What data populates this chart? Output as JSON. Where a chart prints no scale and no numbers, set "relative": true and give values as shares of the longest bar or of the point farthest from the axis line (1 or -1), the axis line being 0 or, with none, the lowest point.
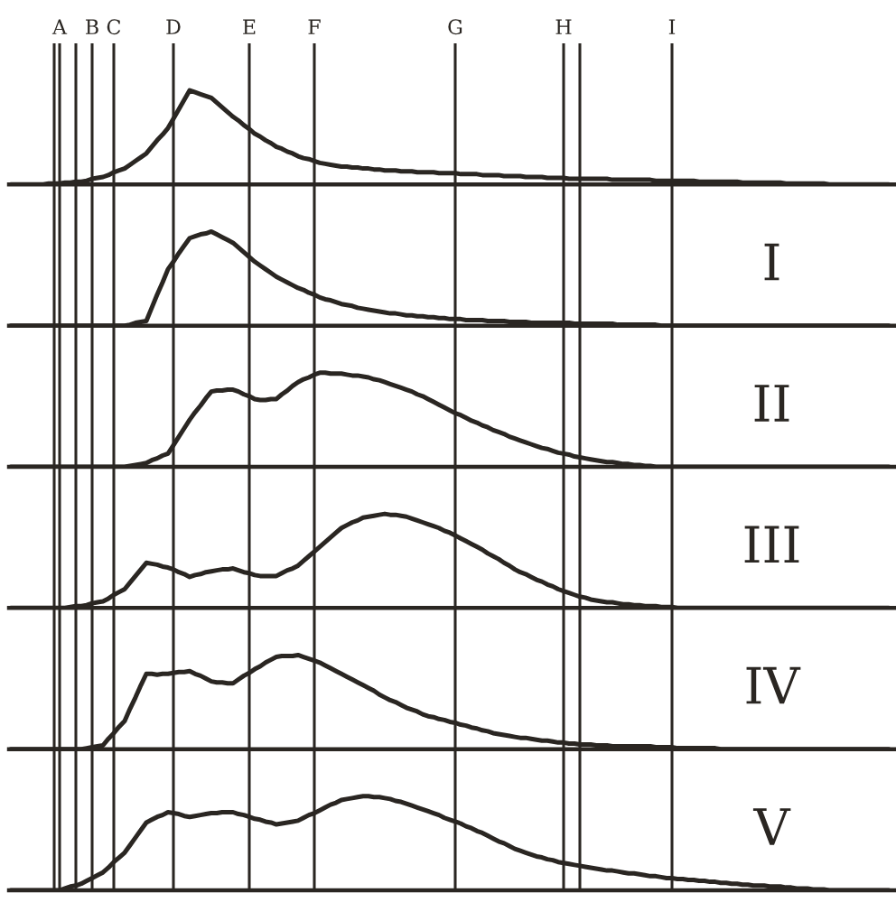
{
  "chart_data": [
    {
      "type": "line",
      "relative": true,
      "tick_labels": "x",
      "marker": "none",
      "line_style": "solid",
      "categories": [
        null,
        null,
        null,
        null,
        null,
        null,
        null,
        null,
        null,
        "A",
        null,
        null,
        null,
        null,
        null,
        "B",
        null,
        null,
        null,
        "C",
        null,
        null,
        null,
        null,
        null,
        null,
        null,
        null,
        null,
        null,
        "D",
        null,
        null,
        null,
        null,
        null,
        null,
        null,
        null,
        null,
        null,
        null,
        null,
        null,
        "E",
        null,
        null,
        null,
        null,
        null,
        null,
        null,
        null,
        null,
        null,
        null,
        "F",
        null,
        null,
        null,
        null,
        null,
        null,
        null,
        null,
        null,
        null,
        null,
        null,
        null,
        null,
        null,
        null,
        null,
        null,
        null,
        null,
        null,
        null,
        null,
        null,
        null,
        "G",
        null,
        null,
        null,
        null,
        null,
        null,
        null,
        null,
        null,
        null,
        null,
        null,
        null,
        null,
        null,
        null,
        null,
        null,
        null,
        "H",
        null,
        null,
        null,
        null,
        null,
        null,
        null,
        null,
        null,
        null,
        null,
        null,
        null,
        null,
        null,
        null,
        null,
        null,
        null,
        "I",
        null,
        null,
        null,
        null,
        null,
        null,
        null,
        null,
        null,
        null,
        null,
        null,
        null,
        null,
        null,
        null,
        null,
        null,
        null,
        null,
        null,
        null,
        null,
        null,
        null,
        null,
        null,
        null,
        null,
        null,
        null,
        null,
        null,
        null,
        null,
        null,
        null,
        null,
        null,
        null
      ],
      "series": [
        {
          "color": "#2a2622",
          "values": [
            0,
            0,
            0,
            0,
            0,
            0,
            0,
            0.01,
            0.01,
            0.01,
            0.02,
            0.02,
            0.03,
            0.03,
            0.04,
            0.06,
            0.07,
            0.08,
            0.1,
            0.13,
            0.15,
            0.17,
            0.21,
            0.25,
            0.29,
            0.33,
            0.4,
            0.47,
            0.53,
            0.6,
            0.7,
            0.8,
            0.9,
            1,
            0.98,
            0.96,
            0.94,
            0.92,
            0.87,
            0.82,
            0.77,
            0.72,
            0.68,
            0.63,
            0.59,
            0.54,
            0.51,
            0.47,
            0.44,
            0.4,
            0.38,
            0.35,
            0.33,
            0.3,
            0.28,
            0.27,
            0.25,
            0.23,
            0.22,
            0.21,
            0.2,
            0.19,
            0.19,
            0.18,
            0.18,
            0.17,
            0.17,
            0.16,
            0.16,
            0.15,
            0.15,
            0.15,
            0.14,
            0.14,
            0.14,
            0.13,
            0.13,
            0.13,
            0.13,
            0.12,
            0.12,
            0.12,
            0.12,
            0.11,
            0.11,
            0.11,
            0.11,
            0.1,
            0.1,
            0.1,
            0.1,
            0.09,
            0.09,
            0.09,
            0.09,
            0.08,
            0.08,
            0.08,
            0.08,
            0.07,
            0.07,
            0.07,
            0.07,
            0.06,
            0.06,
            0.06,
            0.06,
            0.06,
            0.06,
            0.06,
            0.06,
            0.05,
            0.05,
            0.05,
            0.05,
            0.05,
            0.05,
            0.05,
            0.05,
            0.04,
            0.04,
            0.04,
            0.04,
            0.04,
            0.04,
            0.04,
            0.04,
            0.03,
            0.03,
            0.03,
            0.03,
            0.03,
            0.03,
            0.03,
            0.03,
            0.02,
            0.02,
            0.02,
            0.02,
            0.02,
            0.02,
            0.02,
            0.02,
            0.01,
            0.01,
            0.01,
            0.01,
            0.01,
            0.01,
            0.01,
            0.01,
            0,
            0,
            0,
            0,
            0,
            0,
            0,
            0,
            0,
            0,
            0,
            0
          ]
        }
      ],
      "grid": "x"
    },
    {
      "type": "line",
      "relative": true,
      "tick_labels": false,
      "marker": "none",
      "line_style": "solid",
      "title": "I",
      "categories": [
        null,
        null,
        null,
        null,
        null,
        null,
        null,
        null,
        null,
        "A",
        null,
        null,
        null,
        null,
        null,
        "B",
        null,
        null,
        null,
        "C",
        null,
        null,
        null,
        null,
        null,
        null,
        null,
        null,
        null,
        null,
        "D",
        null,
        null,
        null,
        null,
        null,
        null,
        null,
        null,
        null,
        null,
        null,
        null,
        null,
        "E",
        null,
        null,
        null,
        null,
        null,
        null,
        null,
        null,
        null,
        null,
        null,
        "F",
        null,
        null,
        null,
        null,
        null,
        null,
        null,
        null,
        null,
        null,
        null,
        null,
        null,
        null,
        null,
        null,
        null,
        null,
        null,
        null,
        null,
        null,
        null,
        null,
        null,
        "G",
        null,
        null,
        null,
        null,
        null,
        null,
        null,
        null,
        null,
        null,
        null,
        null,
        null,
        null,
        null,
        null,
        null,
        null,
        null,
        "H",
        null,
        null,
        null,
        null,
        null,
        null,
        null,
        null,
        null,
        null,
        null,
        null,
        null,
        null,
        null,
        null,
        null,
        null,
        null,
        "I",
        null,
        null,
        null,
        null,
        null,
        null,
        null,
        null,
        null,
        null,
        null,
        null,
        null,
        null,
        null,
        null,
        null,
        null,
        null,
        null,
        null,
        null,
        null,
        null,
        null,
        null,
        null,
        null,
        null,
        null,
        null,
        null,
        null,
        null,
        null,
        null,
        null,
        null,
        null,
        null
      ],
      "series": [
        {
          "color": "#2a2622",
          "values": [
            0,
            0,
            0,
            0,
            0,
            0,
            0,
            0,
            0,
            0,
            0,
            0,
            0,
            0,
            0,
            0,
            0,
            0,
            0,
            0,
            0,
            0,
            0.01,
            0.03,
            0.04,
            0.05,
            0.19,
            0.33,
            0.46,
            0.6,
            0.68,
            0.77,
            0.85,
            0.93,
            0.95,
            0.97,
            0.98,
            1,
            0.97,
            0.94,
            0.91,
            0.88,
            0.83,
            0.78,
            0.73,
            0.68,
            0.64,
            0.6,
            0.56,
            0.52,
            0.49,
            0.46,
            0.43,
            0.4,
            0.38,
            0.35,
            0.33,
            0.3,
            0.28,
            0.27,
            0.25,
            0.23,
            0.22,
            0.21,
            0.19,
            0.18,
            0.17,
            0.16,
            0.15,
            0.14,
            0.13,
            0.13,
            0.12,
            0.11,
            0.11,
            0.1,
            0.1,
            0.09,
            0.09,
            0.08,
            0.08,
            0.07,
            0.07,
            0.07,
            0.06,
            0.06,
            0.06,
            0.06,
            0.05,
            0.05,
            0.05,
            0.05,
            0.04,
            0.04,
            0.04,
            0.04,
            0.03,
            0.03,
            0.03,
            0.03,
            0.03,
            0.03,
            0.03,
            0.03,
            0.02,
            0.02,
            0.02,
            0.02,
            0.02,
            0.02,
            0.02,
            0.02,
            0.01,
            0.01,
            0.01,
            0.01,
            0.01,
            0.01,
            0.01,
            0.01,
            0,
            0,
            0,
            0,
            0,
            0,
            0,
            0,
            0,
            0,
            0,
            0,
            0,
            0,
            0,
            0,
            0,
            0,
            0,
            0,
            0,
            0,
            0,
            0,
            0,
            0,
            0,
            0,
            0,
            0,
            0,
            0,
            0,
            0,
            0,
            0,
            0,
            0,
            0,
            0,
            0,
            0,
            0
          ]
        }
      ],
      "grid": "x"
    },
    {
      "type": "line",
      "relative": true,
      "tick_labels": false,
      "marker": "none",
      "line_style": "solid",
      "title": "II",
      "categories": [
        null,
        null,
        null,
        null,
        null,
        null,
        null,
        null,
        null,
        "A",
        null,
        null,
        null,
        null,
        null,
        "B",
        null,
        null,
        null,
        "C",
        null,
        null,
        null,
        null,
        null,
        null,
        null,
        null,
        null,
        null,
        "D",
        null,
        null,
        null,
        null,
        null,
        null,
        null,
        null,
        null,
        null,
        null,
        null,
        null,
        "E",
        null,
        null,
        null,
        null,
        null,
        null,
        null,
        null,
        null,
        null,
        null,
        "F",
        null,
        null,
        null,
        null,
        null,
        null,
        null,
        null,
        null,
        null,
        null,
        null,
        null,
        null,
        null,
        null,
        null,
        null,
        null,
        null,
        null,
        null,
        null,
        null,
        null,
        "G",
        null,
        null,
        null,
        null,
        null,
        null,
        null,
        null,
        null,
        null,
        null,
        null,
        null,
        null,
        null,
        null,
        null,
        null,
        null,
        "H",
        null,
        null,
        null,
        null,
        null,
        null,
        null,
        null,
        null,
        null,
        null,
        null,
        null,
        null,
        null,
        null,
        null,
        null,
        null,
        "I",
        null,
        null,
        null,
        null,
        null,
        null,
        null,
        null,
        null,
        null,
        null,
        null,
        null,
        null,
        null,
        null,
        null,
        null,
        null,
        null,
        null,
        null,
        null,
        null,
        null,
        null,
        null,
        null,
        null,
        null,
        null,
        null,
        null,
        null,
        null,
        null,
        null,
        null,
        null,
        null
      ],
      "series": [
        {
          "color": "#2a2622",
          "values": [
            0,
            0,
            0,
            0,
            0,
            0,
            0,
            0,
            0,
            0,
            0,
            0,
            0,
            0,
            0,
            0,
            0,
            0,
            0,
            0,
            0,
            0,
            0.01,
            0.02,
            0.03,
            0.04,
            0.07,
            0.09,
            0.12,
            0.14,
            0.23,
            0.32,
            0.41,
            0.5,
            0.58,
            0.65,
            0.73,
            0.8,
            0.81,
            0.81,
            0.82,
            0.82,
            0.8,
            0.77,
            0.75,
            0.72,
            0.71,
            0.71,
            0.72,
            0.72,
            0.77,
            0.81,
            0.86,
            0.9,
            0.93,
            0.95,
            0.98,
            1,
            1,
            0.99,
            0.99,
            0.99,
            0.98,
            0.97,
            0.97,
            0.96,
            0.95,
            0.93,
            0.92,
            0.9,
            0.88,
            0.86,
            0.84,
            0.82,
            0.8,
            0.77,
            0.75,
            0.72,
            0.69,
            0.66,
            0.63,
            0.6,
            0.57,
            0.55,
            0.52,
            0.49,
            0.47,
            0.44,
            0.42,
            0.39,
            0.37,
            0.35,
            0.32,
            0.3,
            0.28,
            0.26,
            0.24,
            0.22,
            0.2,
            0.19,
            0.17,
            0.15,
            0.14,
            0.13,
            0.11,
            0.1,
            0.09,
            0.08,
            0.07,
            0.06,
            0.05,
            0.05,
            0.04,
            0.03,
            0.03,
            0.02,
            0.02,
            0.01,
            0.01,
            0,
            0,
            0,
            0,
            0,
            0,
            0,
            0,
            0,
            0,
            0,
            0,
            0,
            0,
            0,
            0,
            0,
            0,
            0,
            0,
            0,
            0,
            0,
            0,
            0,
            0,
            0,
            0,
            0,
            0,
            0,
            0,
            0,
            0,
            0,
            0,
            0,
            0,
            0,
            0,
            0,
            0,
            0,
            0
          ]
        }
      ],
      "grid": "x"
    },
    {
      "type": "line",
      "relative": true,
      "tick_labels": false,
      "marker": "none",
      "line_style": "solid",
      "title": "III",
      "categories": [
        null,
        null,
        null,
        null,
        null,
        null,
        null,
        null,
        null,
        "A",
        null,
        null,
        null,
        null,
        null,
        "B",
        null,
        null,
        null,
        "C",
        null,
        null,
        null,
        null,
        null,
        null,
        null,
        null,
        null,
        null,
        "D",
        null,
        null,
        null,
        null,
        null,
        null,
        null,
        null,
        null,
        null,
        null,
        null,
        null,
        "E",
        null,
        null,
        null,
        null,
        null,
        null,
        null,
        null,
        null,
        null,
        null,
        "F",
        null,
        null,
        null,
        null,
        null,
        null,
        null,
        null,
        null,
        null,
        null,
        null,
        null,
        null,
        null,
        null,
        null,
        null,
        null,
        null,
        null,
        null,
        null,
        null,
        null,
        "G",
        null,
        null,
        null,
        null,
        null,
        null,
        null,
        null,
        null,
        null,
        null,
        null,
        null,
        null,
        null,
        null,
        null,
        null,
        null,
        "H",
        null,
        null,
        null,
        null,
        null,
        null,
        null,
        null,
        null,
        null,
        null,
        null,
        null,
        null,
        null,
        null,
        null,
        null,
        null,
        "I",
        null,
        null,
        null,
        null,
        null,
        null,
        null,
        null,
        null,
        null,
        null,
        null,
        null,
        null,
        null,
        null,
        null,
        null,
        null,
        null,
        null,
        null,
        null,
        null,
        null,
        null,
        null,
        null,
        null,
        null,
        null,
        null,
        null,
        null,
        null,
        null,
        null,
        null,
        null,
        null
      ],
      "series": [
        {
          "color": "#2a2622",
          "values": [
            0,
            0,
            0,
            0,
            0,
            0,
            0,
            0,
            0,
            0,
            0,
            0.01,
            0.02,
            0.02,
            0.03,
            0.05,
            0.06,
            0.07,
            0.1,
            0.14,
            0.17,
            0.2,
            0.27,
            0.34,
            0.41,
            0.48,
            0.47,
            0.46,
            0.44,
            0.43,
            0.41,
            0.38,
            0.36,
            0.33,
            0.35,
            0.36,
            0.38,
            0.39,
            0.4,
            0.41,
            0.41,
            0.42,
            0.4,
            0.38,
            0.37,
            0.35,
            0.34,
            0.34,
            0.34,
            0.34,
            0.37,
            0.4,
            0.42,
            0.45,
            0.5,
            0.55,
            0.6,
            0.65,
            0.7,
            0.75,
            0.8,
            0.85,
            0.88,
            0.91,
            0.93,
            0.96,
            0.97,
            0.98,
            0.99,
            1,
            0.99,
            0.99,
            0.98,
            0.97,
            0.95,
            0.93,
            0.91,
            0.89,
            0.87,
            0.85,
            0.82,
            0.8,
            0.77,
            0.74,
            0.71,
            0.68,
            0.65,
            0.62,
            0.58,
            0.55,
            0.52,
            0.48,
            0.45,
            0.41,
            0.38,
            0.36,
            0.33,
            0.3,
            0.28,
            0.25,
            0.23,
            0.2,
            0.18,
            0.16,
            0.14,
            0.12,
            0.11,
            0.09,
            0.08,
            0.07,
            0.06,
            0.06,
            0.05,
            0.04,
            0.04,
            0.03,
            0.03,
            0.02,
            0.02,
            0.02,
            0.01,
            0.01,
            0.01,
            0,
            0,
            0,
            0,
            0,
            0,
            0,
            0,
            0,
            0,
            0,
            0,
            0,
            0,
            0,
            0,
            0,
            0,
            0,
            0,
            0,
            0,
            0,
            0,
            0,
            0,
            0,
            0,
            0,
            0,
            0,
            0,
            0,
            0,
            0,
            0,
            0,
            0,
            0,
            0
          ]
        }
      ],
      "grid": "x"
    },
    {
      "type": "line",
      "relative": true,
      "tick_labels": false,
      "marker": "none",
      "line_style": "solid",
      "title": "IV",
      "categories": [
        null,
        null,
        null,
        null,
        null,
        null,
        null,
        null,
        null,
        "A",
        null,
        null,
        null,
        null,
        null,
        "B",
        null,
        null,
        null,
        "C",
        null,
        null,
        null,
        null,
        null,
        null,
        null,
        null,
        null,
        null,
        "D",
        null,
        null,
        null,
        null,
        null,
        null,
        null,
        null,
        null,
        null,
        null,
        null,
        null,
        "E",
        null,
        null,
        null,
        null,
        null,
        null,
        null,
        null,
        null,
        null,
        null,
        "F",
        null,
        null,
        null,
        null,
        null,
        null,
        null,
        null,
        null,
        null,
        null,
        null,
        null,
        null,
        null,
        null,
        null,
        null,
        null,
        null,
        null,
        null,
        null,
        null,
        null,
        "G",
        null,
        null,
        null,
        null,
        null,
        null,
        null,
        null,
        null,
        null,
        null,
        null,
        null,
        null,
        null,
        null,
        null,
        null,
        null,
        "H",
        null,
        null,
        null,
        null,
        null,
        null,
        null,
        null,
        null,
        null,
        null,
        null,
        null,
        null,
        null,
        null,
        null,
        null,
        null,
        "I",
        null,
        null,
        null,
        null,
        null,
        null,
        null,
        null,
        null,
        null,
        null,
        null,
        null,
        null,
        null,
        null,
        null,
        null,
        null,
        null,
        null,
        null,
        null,
        null,
        null,
        null,
        null,
        null,
        null,
        null,
        null,
        null,
        null,
        null,
        null,
        null,
        null,
        null,
        null,
        null
      ],
      "series": [
        {
          "color": "#2a2622",
          "values": [
            0,
            0,
            0,
            0,
            0,
            0,
            0,
            0,
            0,
            0,
            0,
            0,
            0,
            0,
            0.01,
            0.02,
            0.03,
            0.04,
            0.11,
            0.17,
            0.24,
            0.3,
            0.43,
            0.55,
            0.68,
            0.8,
            0.8,
            0.79,
            0.8,
            0.8,
            0.81,
            0.82,
            0.82,
            0.83,
            0.8,
            0.78,
            0.75,
            0.72,
            0.71,
            0.71,
            0.7,
            0.7,
            0.74,
            0.78,
            0.81,
            0.85,
            0.88,
            0.92,
            0.95,
            0.98,
            0.99,
            0.99,
            0.99,
            1,
            0.98,
            0.96,
            0.94,
            0.92,
            0.89,
            0.86,
            0.83,
            0.8,
            0.77,
            0.74,
            0.71,
            0.68,
            0.65,
            0.62,
            0.58,
            0.55,
            0.52,
            0.5,
            0.47,
            0.44,
            0.42,
            0.4,
            0.37,
            0.35,
            0.34,
            0.32,
            0.31,
            0.29,
            0.28,
            0.26,
            0.25,
            0.23,
            0.22,
            0.2,
            0.19,
            0.17,
            0.16,
            0.15,
            0.14,
            0.13,
            0.12,
            0.12,
            0.11,
            0.1,
            0.09,
            0.09,
            0.08,
            0.07,
            0.07,
            0.06,
            0.06,
            0.05,
            0.05,
            0.05,
            0.04,
            0.04,
            0.04,
            0.03,
            0.03,
            0.03,
            0.03,
            0.03,
            0.03,
            0.03,
            0.03,
            0.02,
            0.02,
            0.02,
            0.02,
            0.01,
            0.01,
            0.01,
            0.01,
            0.01,
            0.01,
            0.01,
            0.01,
            0,
            0,
            0,
            0,
            0,
            0,
            0,
            0,
            0,
            0,
            0,
            0,
            0,
            0,
            0,
            0,
            0,
            0,
            0,
            0,
            0,
            0,
            0,
            0,
            0,
            0,
            0,
            0,
            0,
            0,
            0,
            0
          ]
        }
      ],
      "grid": "x"
    },
    {
      "type": "line",
      "relative": true,
      "tick_labels": false,
      "marker": "none",
      "line_style": "solid",
      "title": "V",
      "categories": [
        null,
        null,
        null,
        null,
        null,
        null,
        null,
        null,
        null,
        "A",
        null,
        null,
        null,
        null,
        null,
        "B",
        null,
        null,
        null,
        "C",
        null,
        null,
        null,
        null,
        null,
        null,
        null,
        null,
        null,
        null,
        "D",
        null,
        null,
        null,
        null,
        null,
        null,
        null,
        null,
        null,
        null,
        null,
        null,
        null,
        "E",
        null,
        null,
        null,
        null,
        null,
        null,
        null,
        null,
        null,
        null,
        null,
        "F",
        null,
        null,
        null,
        null,
        null,
        null,
        null,
        null,
        null,
        null,
        null,
        null,
        null,
        null,
        null,
        null,
        null,
        null,
        null,
        null,
        null,
        null,
        null,
        null,
        null,
        "G",
        null,
        null,
        null,
        null,
        null,
        null,
        null,
        null,
        null,
        null,
        null,
        null,
        null,
        null,
        null,
        null,
        null,
        null,
        null,
        "H",
        null,
        null,
        null,
        null,
        null,
        null,
        null,
        null,
        null,
        null,
        null,
        null,
        null,
        null,
        null,
        null,
        null,
        null,
        null,
        "I",
        null,
        null,
        null,
        null,
        null,
        null,
        null,
        null,
        null,
        null,
        null,
        null,
        null,
        null,
        null,
        null,
        null,
        null,
        null,
        null,
        null,
        null,
        null,
        null,
        null,
        null,
        null,
        null,
        null,
        null,
        null,
        null,
        null,
        null,
        null,
        null,
        null,
        null,
        null,
        null
      ],
      "series": [
        {
          "color": "#2a2622",
          "values": [
            0,
            0,
            0,
            0,
            0,
            0,
            0,
            0,
            0,
            0,
            0.02,
            0.04,
            0.05,
            0.07,
            0.1,
            0.13,
            0.16,
            0.19,
            0.24,
            0.3,
            0.35,
            0.4,
            0.48,
            0.56,
            0.64,
            0.72,
            0.75,
            0.78,
            0.8,
            0.83,
            0.82,
            0.81,
            0.79,
            0.78,
            0.79,
            0.8,
            0.81,
            0.82,
            0.82,
            0.83,
            0.83,
            0.83,
            0.81,
            0.8,
            0.78,
            0.76,
            0.75,
            0.73,
            0.72,
            0.7,
            0.71,
            0.72,
            0.73,
            0.74,
            0.77,
            0.8,
            0.82,
            0.85,
            0.88,
            0.91,
            0.93,
            0.96,
            0.97,
            0.98,
            0.99,
            1,
            1,
            0.99,
            0.99,
            0.98,
            0.97,
            0.95,
            0.94,
            0.92,
            0.9,
            0.88,
            0.86,
            0.84,
            0.82,
            0.8,
            0.77,
            0.75,
            0.73,
            0.71,
            0.68,
            0.66,
            0.63,
            0.61,
            0.58,
            0.55,
            0.52,
            0.5,
            0.47,
            0.44,
            0.42,
            0.4,
            0.38,
            0.36,
            0.35,
            0.33,
            0.32,
            0.3,
            0.29,
            0.28,
            0.27,
            0.26,
            0.25,
            0.24,
            0.23,
            0.22,
            0.21,
            0.21,
            0.2,
            0.19,
            0.18,
            0.18,
            0.17,
            0.16,
            0.15,
            0.15,
            0.14,
            0.13,
            0.13,
            0.12,
            0.12,
            0.11,
            0.11,
            0.1,
            0.1,
            0.09,
            0.09,
            0.08,
            0.08,
            0.07,
            0.07,
            0.06,
            0.06,
            0.05,
            0.05,
            0.05,
            0.04,
            0.04,
            0.04,
            0.03,
            0.03,
            0.02,
            0.02,
            0.02,
            0.01,
            0.01,
            0.01,
            0,
            0,
            0,
            0,
            0,
            0,
            0,
            0,
            0,
            0,
            0,
            0
          ]
        }
      ],
      "grid": "x"
    }
  ]
}
